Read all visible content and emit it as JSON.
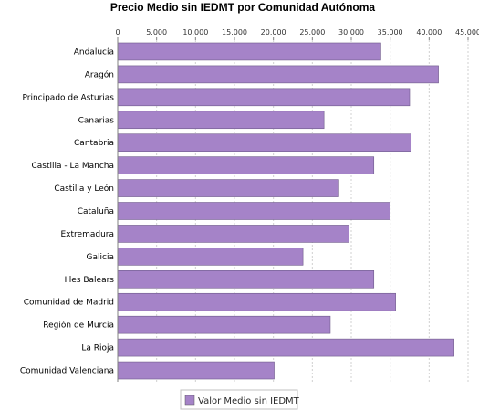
{
  "chart_data": {
    "type": "bar",
    "orientation": "horizontal",
    "title": "Precio Medio sin IEDMT por Comunidad Autónoma",
    "xlabel": "",
    "ylabel": "",
    "xlim": [
      0,
      45000
    ],
    "ticks": [
      {
        "value": 0,
        "label": "0"
      },
      {
        "value": 5000,
        "label": "5.000"
      },
      {
        "value": 10000,
        "label": "10.000"
      },
      {
        "value": 15000,
        "label": "15.000"
      },
      {
        "value": 20000,
        "label": "20.000"
      },
      {
        "value": 25000,
        "label": "25.000"
      },
      {
        "value": 30000,
        "label": "30.000"
      },
      {
        "value": 35000,
        "label": "35.000"
      },
      {
        "value": 40000,
        "label": "40.000"
      },
      {
        "value": 45000,
        "label": "45.000"
      }
    ],
    "grid": true,
    "axis_position": "top",
    "categories": [
      "Andalucía",
      "Aragón",
      "Principado de Asturias",
      "Canarias",
      "Cantabria",
      "Castilla - La Mancha",
      "Castilla y León",
      "Cataluña",
      "Extremadura",
      "Galicia",
      "Illes Balears",
      "Comunidad de Madrid",
      "Región de Murcia",
      "La Rioja",
      "Comunidad Valenciana"
    ],
    "series": [
      {
        "name": "Valor Medio sin IEDMT",
        "color": "#a583c8",
        "values": [
          33800,
          41200,
          37500,
          26500,
          37700,
          32900,
          28400,
          35000,
          29700,
          23800,
          32900,
          35700,
          27300,
          43200,
          20100
        ]
      }
    ],
    "legend_position": "bottom-center"
  }
}
